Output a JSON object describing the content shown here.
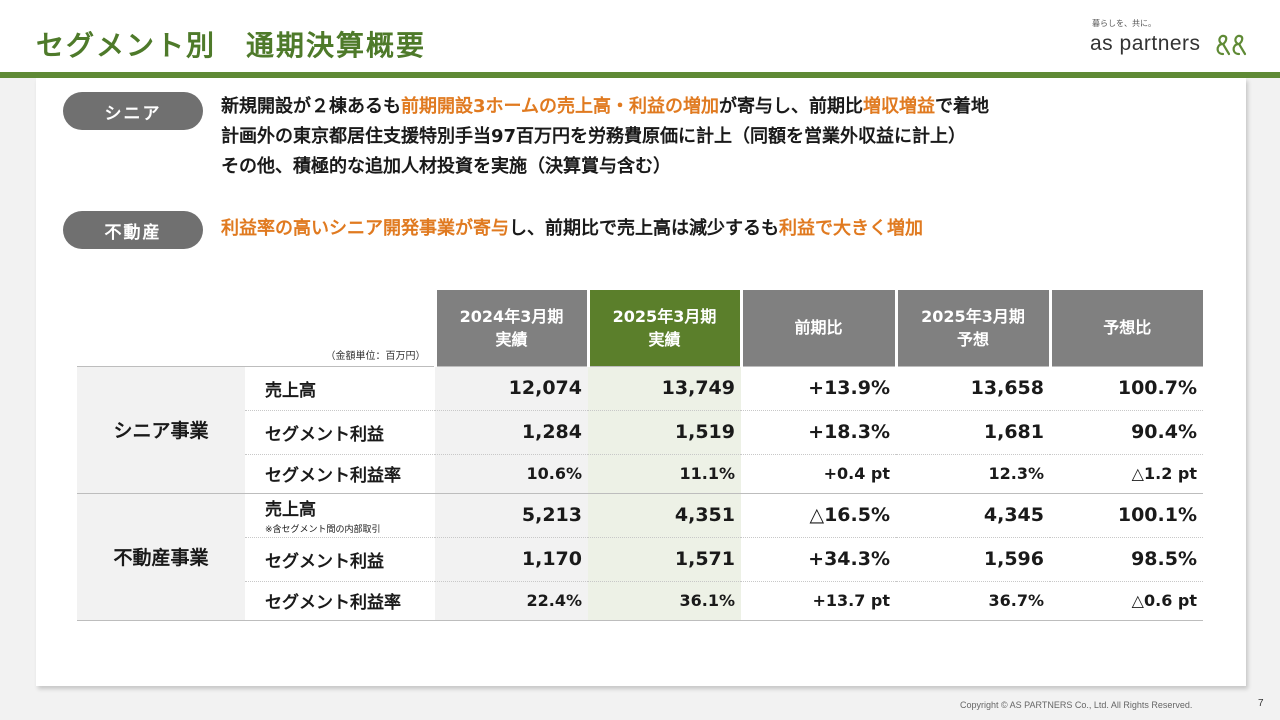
{
  "header": {
    "title": "セグメント別　通期決算概要",
    "logo_tagline": "暮らしを、共に。",
    "logo_text": "as partners",
    "brand_color": "#5f8a35"
  },
  "senior": {
    "label": "シニア",
    "line1": {
      "p1": "新規開設が２棟あるも",
      "h1": "前期開設3ホームの売上高・利益の増加",
      "p2": "が寄与し、前期比",
      "h2": "増収増益",
      "p3": "で着地"
    },
    "line2": "計画外の東京都居住支援特別手当97百万円を労務費原価に計上（同額を営業外収益に計上）",
    "line3": "その他、積極的な追加人材投資を実施（決算賞与含む）"
  },
  "realestate": {
    "label": "不動産",
    "line1": {
      "h1": "利益率の高いシニア開発事業が寄与",
      "p1": "し、前期比で売上高は減少するも",
      "h2": "利益で大きく増加"
    }
  },
  "table": {
    "unit": "（金額単位：百万円）",
    "headers": {
      "fy2024_a": "2024年3月期",
      "fy2024_b": "実績",
      "fy2025_a": "2025年3月期",
      "fy2025_b": "実績",
      "yoy": "前期比",
      "fc_a": "2025年3月期",
      "fc_b": "予想",
      "vs_fc": "予想比"
    },
    "segments": [
      {
        "name": "シニア事業",
        "rows": [
          {
            "metric": "売上高",
            "note": "",
            "fy2024": "12,074",
            "fy2025": "13,749",
            "yoy": "+13.9%",
            "forecast": "13,658",
            "vs_forecast": "100.7%"
          },
          {
            "metric": "セグメント利益",
            "note": "",
            "fy2024": "1,284",
            "fy2025": "1,519",
            "yoy": "+18.3%",
            "forecast": "1,681",
            "vs_forecast": "90.4%"
          },
          {
            "metric": "セグメント利益率",
            "note": "",
            "fy2024": "10.6%",
            "fy2025": "11.1%",
            "yoy": "+0.4 pt",
            "forecast": "12.3%",
            "vs_forecast": "△1.2 pt"
          }
        ]
      },
      {
        "name": "不動産事業",
        "rows": [
          {
            "metric": "売上高",
            "note": "※含セグメント間の内部取引",
            "fy2024": "5,213",
            "fy2025": "4,351",
            "yoy": "△16.5%",
            "forecast": "4,345",
            "vs_forecast": "100.1%"
          },
          {
            "metric": "セグメント利益",
            "note": "",
            "fy2024": "1,170",
            "fy2025": "1,571",
            "yoy": "+34.3%",
            "forecast": "1,596",
            "vs_forecast": "98.5%"
          },
          {
            "metric": "セグメント利益率",
            "note": "",
            "fy2024": "22.4%",
            "fy2025": "36.1%",
            "yoy": "+13.7 pt",
            "forecast": "36.7%",
            "vs_forecast": "△0.6 pt"
          }
        ]
      }
    ]
  },
  "footer": {
    "copyright": "Copyright © AS PARTNERS Co., Ltd. All Rights Reserved.",
    "page": "7"
  }
}
